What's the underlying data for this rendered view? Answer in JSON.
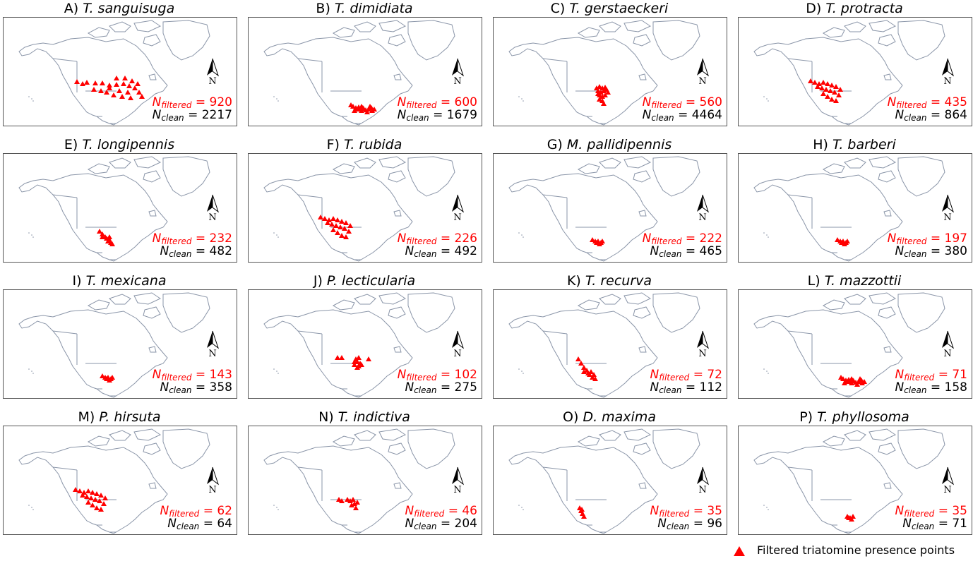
{
  "panels": [
    {
      "letter": "A)",
      "genus": "T.",
      "species": "sanguisuga",
      "n_filtered": "920",
      "n_clean": "2217",
      "cluster": "se_us"
    },
    {
      "letter": "B)",
      "genus": "T.",
      "species": "dimidiata",
      "n_filtered": "600",
      "n_clean": "1679",
      "cluster": "s_mexico"
    },
    {
      "letter": "C)",
      "genus": "T.",
      "species": "gerstaeckeri",
      "n_filtered": "560",
      "n_clean": "4464",
      "cluster": "texas"
    },
    {
      "letter": "D)",
      "genus": "T.",
      "species": "protracta",
      "n_filtered": "435",
      "n_clean": "864",
      "cluster": "sw_us"
    },
    {
      "letter": "E)",
      "genus": "T.",
      "species": "longipennis",
      "n_filtered": "232",
      "n_clean": "482",
      "cluster": "w_mexico"
    },
    {
      "letter": "F)",
      "genus": "T.",
      "species": "rubida",
      "n_filtered": "226",
      "n_clean": "492",
      "cluster": "sw_us"
    },
    {
      "letter": "G)",
      "genus": "M.",
      "species": "pallidipennis",
      "n_filtered": "222",
      "n_clean": "465",
      "cluster": "c_mexico"
    },
    {
      "letter": "H)",
      "genus": "T.",
      "species": "barberi",
      "n_filtered": "197",
      "n_clean": "380",
      "cluster": "c_mexico"
    },
    {
      "letter": "I)",
      "genus": "T.",
      "species": "mexicana",
      "n_filtered": "143",
      "n_clean": "358",
      "cluster": "c_mexico"
    },
    {
      "letter": "J)",
      "genus": "P.",
      "species": "lecticularia",
      "n_filtered": "102",
      "n_clean": "275",
      "cluster": "s_us"
    },
    {
      "letter": "K)",
      "genus": "T.",
      "species": "recurva",
      "n_filtered": "72",
      "n_clean": "112",
      "cluster": "nw_mexico"
    },
    {
      "letter": "L)",
      "genus": "T.",
      "species": "mazzottii",
      "n_filtered": "71",
      "n_clean": "158",
      "cluster": "s_mexico"
    },
    {
      "letter": "M)",
      "genus": "P.",
      "species": "hirsuta",
      "n_filtered": "62",
      "n_clean": "64",
      "cluster": "sw_us"
    },
    {
      "letter": "N)",
      "genus": "T.",
      "species": "indictiva",
      "n_filtered": "46",
      "n_clean": "204",
      "cluster": "texas_sparse"
    },
    {
      "letter": "O)",
      "genus": "D.",
      "species": "maxima",
      "n_filtered": "35",
      "n_clean": "96",
      "cluster": "baja"
    },
    {
      "letter": "P)",
      "genus": "T.",
      "species": "phyllosoma",
      "n_filtered": "35",
      "n_clean": "71",
      "cluster": "s_mexico_small"
    }
  ],
  "labels": {
    "n_symbol": "N",
    "filtered_sub": "filtered",
    "clean_sub": "clean",
    "north": "N"
  },
  "legend": {
    "label": "Filtered triatomine presence points",
    "icon": "red-triangle"
  },
  "colors": {
    "points": "#ff0000",
    "coast": "#8a95a8",
    "border": "#555555"
  }
}
